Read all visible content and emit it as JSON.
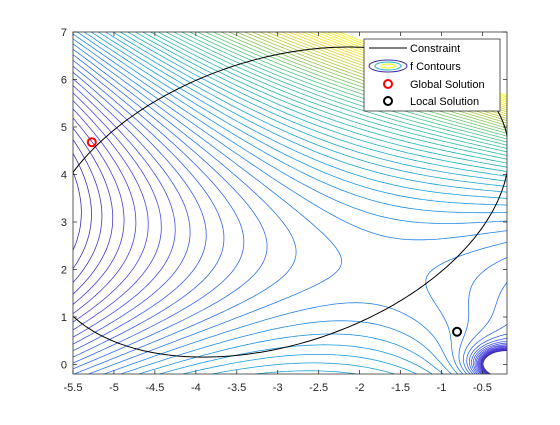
{
  "chart_data": {
    "type": "line",
    "title": "",
    "xlabel": "",
    "ylabel": "",
    "xlim": [
      -5.5,
      -0.2
    ],
    "ylim": [
      -0.2,
      7
    ],
    "grid": false,
    "legend_position": "top-right",
    "x_ticks": [
      -5.5,
      -5,
      -4.5,
      -4,
      -3.5,
      -3,
      -2.5,
      -2,
      -1.5,
      -1,
      -0.5
    ],
    "x_tick_labels": [
      "-5.5",
      "-5",
      "-4.5",
      "-4",
      "-3.5",
      "-3",
      "-2.5",
      "-2",
      "-1.5",
      "-1",
      "-0.5"
    ],
    "y_ticks": [
      0,
      1,
      2,
      3,
      4,
      5,
      6,
      7
    ],
    "y_tick_labels": [
      "0",
      "1",
      "2",
      "3",
      "4",
      "5",
      "6",
      "7"
    ],
    "constraint": {
      "name": "Constraint",
      "shape": "ellipse",
      "center": [
        -3.02,
        3.42
      ],
      "semi_axes": [
        2.49,
        3.54
      ],
      "rotation_deg": -33,
      "color": "#000000"
    },
    "contours": {
      "name": "f Contours",
      "colormap": [
        "#3e26a8",
        "#4a45e8",
        "#2f6cf0",
        "#1a9bdd",
        "#1fb5b5",
        "#4cc58b",
        "#a8c441",
        "#f4dd2a",
        "#f9fb0e"
      ]
    },
    "points": [
      {
        "name": "Global Solution",
        "x": -5.27,
        "y": 4.68,
        "color": "#ff0000"
      },
      {
        "name": "Local Solution",
        "x": -0.81,
        "y": 0.69,
        "color": "#000000"
      }
    ]
  },
  "legend": {
    "items": [
      "Constraint",
      "f Contours",
      "Global Solution",
      "Local Solution"
    ]
  }
}
